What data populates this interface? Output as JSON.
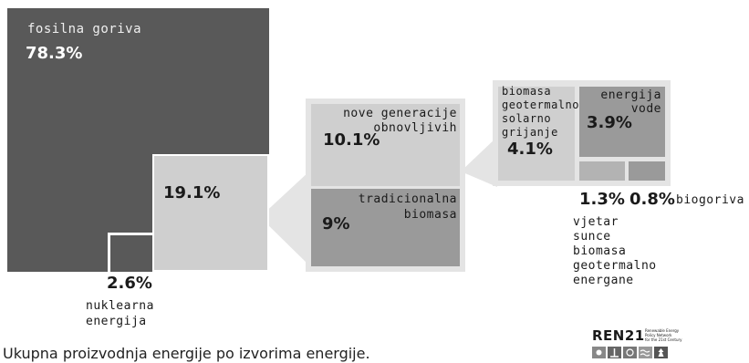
{
  "chart_data": {
    "type": "treemap",
    "title": "",
    "caption": "Ukupna proizvodnja energije po izvorima energije.",
    "blocks": [
      {
        "id": "fossil",
        "name": "fosilna goriva",
        "value": 78.3,
        "value_label": "78.3%"
      },
      {
        "id": "renewables",
        "name": "",
        "value": 19.1,
        "value_label": "19.1%"
      },
      {
        "id": "nuclear",
        "name": "nuklearna\nenergija",
        "value": 2.6,
        "value_label": "2.6%"
      },
      {
        "id": "modern",
        "name": "nove generacije\nobnovljivih",
        "value": 10.1,
        "value_label": "10.1%"
      },
      {
        "id": "traditional",
        "name": "tradicionalna\nbiomasa",
        "value": 9,
        "value_label": "9%"
      },
      {
        "id": "heat",
        "name": "biomasa\ngeotermalno\nsolarno\ngrijanje",
        "value": 4.1,
        "value_label": "4.1%"
      },
      {
        "id": "hydro",
        "name": "energija\nvode",
        "value": 3.9,
        "value_label": "3.9%"
      },
      {
        "id": "power",
        "name": "vjetar\nsunce\nbiomasa\ngeotermalno\nenergane",
        "value": 1.3,
        "value_label": "1.3%"
      },
      {
        "id": "biofuels",
        "name": "biogoriva",
        "value": 0.8,
        "value_label": "0.8%"
      }
    ]
  },
  "logo": {
    "name": "REN21",
    "tagline": "Renewable Energy\nPolicy Network\nfor the 21st Century"
  },
  "colors": {
    "fossil": "#595959",
    "light": "#cfcfcf",
    "medium": "#9a9a9a",
    "connector": "#e3e3e3",
    "text_dark": "#1a1a1a"
  }
}
